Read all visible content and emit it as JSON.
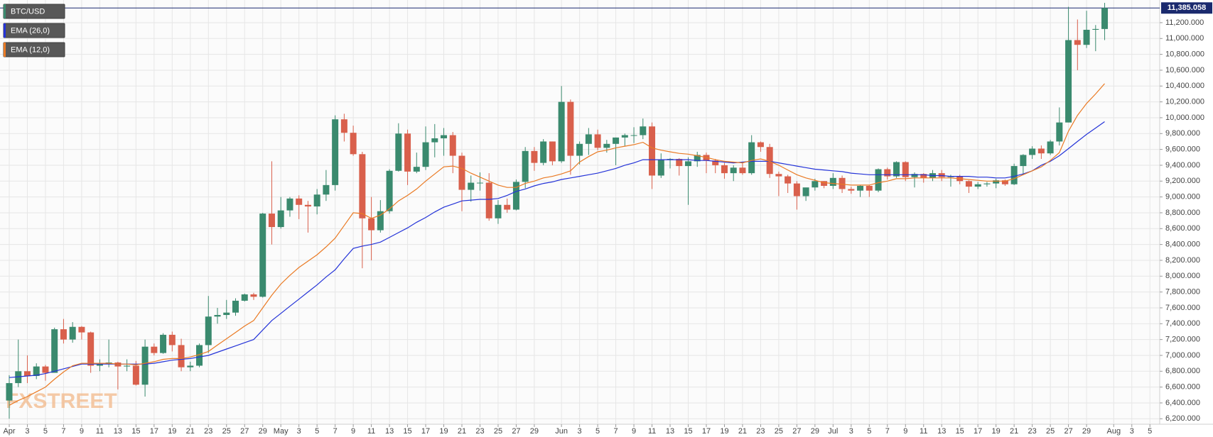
{
  "chart_data": {
    "type": "candlestick",
    "watermark": "FXSTREET",
    "categories": [
      "Apr",
      null,
      "3",
      null,
      "5",
      null,
      "7",
      null,
      "9",
      null,
      "11",
      null,
      "13",
      null,
      "15",
      null,
      "17",
      null,
      "19",
      null,
      "21",
      null,
      "23",
      null,
      "25",
      null,
      "27",
      null,
      "29",
      null,
      "May",
      null,
      "3",
      null,
      "5",
      null,
      "7",
      null,
      "9",
      null,
      "11",
      null,
      "13",
      null,
      "15",
      null,
      "17",
      null,
      "19",
      null,
      "21",
      null,
      "23",
      null,
      "25",
      null,
      "27",
      null,
      "29",
      null,
      null,
      "Jun",
      null,
      "3",
      null,
      "5",
      null,
      "7",
      null,
      "9",
      null,
      "11",
      null,
      "13",
      null,
      "15",
      null,
      "17",
      null,
      "19",
      null,
      "21",
      null,
      "23",
      null,
      "25",
      null,
      "27",
      null,
      "29",
      null,
      "Jul",
      null,
      "3",
      null,
      "5",
      null,
      "7",
      null,
      "9",
      null,
      "11",
      null,
      "13",
      null,
      "15",
      null,
      "17",
      null,
      "19",
      null,
      "21",
      null,
      "23",
      null,
      "25",
      null,
      "27",
      null,
      "29",
      null,
      null,
      "Aug",
      null,
      "3",
      null,
      "5",
      null
    ],
    "ohlc": {
      "name": "BTC/USD",
      "up_color": "#3a8a6e",
      "down_color": "#d9604c",
      "open": [
        6430,
        6650,
        6800,
        6740,
        6860,
        6780,
        7330,
        7200,
        7360,
        7290,
        6870,
        6890,
        6910,
        6860,
        6870,
        6630,
        7110,
        7030,
        7260,
        7130,
        6850,
        6870,
        7130,
        7490,
        7510,
        7540,
        7690,
        7770,
        7740,
        8790,
        8620,
        8830,
        8980,
        8900,
        8880,
        9030,
        9150,
        9980,
        9810,
        9540,
        8730,
        8580,
        8820,
        9330,
        9800,
        9320,
        9380,
        9690,
        9740,
        9780,
        9520,
        9090,
        9180,
        9180,
        8730,
        8900,
        8840,
        9190,
        9580,
        9430,
        9700,
        9450,
        10200,
        9520,
        9670,
        9790,
        9620,
        9670,
        9750,
        9780,
        9780,
        9890,
        9270,
        9470,
        9480,
        9390,
        9450,
        9530,
        9460,
        9400,
        9300,
        9370,
        9300,
        9690,
        9630,
        9290,
        9260,
        9170,
        9010,
        9120,
        9200,
        9140,
        9240,
        9100,
        9080,
        9140,
        9080,
        9350,
        9260,
        9440,
        9250,
        9290,
        9240,
        9300,
        9250,
        9260,
        9200,
        9130,
        9160,
        9170,
        9210,
        9160,
        9390,
        9530,
        9610,
        9550,
        9700,
        9940,
        10980,
        10920,
        11110,
        11120,
        null,
        null,
        null,
        null,
        null,
        null
      ],
      "high": [
        6750,
        7200,
        7000,
        6900,
        6880,
        7350,
        7460,
        7420,
        7370,
        7300,
        6950,
        7200,
        6920,
        6950,
        6930,
        7200,
        7150,
        7280,
        7300,
        7210,
        6920,
        7150,
        7750,
        7600,
        7700,
        7720,
        7780,
        7790,
        8800,
        9450,
        9000,
        9000,
        9020,
        8950,
        9100,
        9340,
        10030,
        10050,
        9900,
        9570,
        9000,
        8960,
        9350,
        9930,
        9850,
        9560,
        9890,
        9920,
        9870,
        9820,
        9560,
        9270,
        9310,
        9300,
        8960,
        8980,
        9220,
        9630,
        9630,
        9730,
        9700,
        10400,
        10230,
        9700,
        9870,
        9850,
        9720,
        9750,
        9800,
        9880,
        9990,
        9940,
        9550,
        9490,
        9490,
        9500,
        9570,
        9560,
        9480,
        9430,
        9400,
        9440,
        9780,
        9700,
        9670,
        9320,
        9280,
        9200,
        9110,
        9230,
        9200,
        9300,
        9270,
        9130,
        9150,
        9150,
        9360,
        9370,
        9450,
        9450,
        9310,
        9300,
        9340,
        9340,
        9280,
        9280,
        9210,
        9190,
        9190,
        9230,
        9220,
        9420,
        9540,
        9640,
        9650,
        9720,
        10130,
        11400,
        11240,
        11350,
        11170,
        11450,
        null,
        null,
        null,
        null,
        null,
        null
      ],
      "low": [
        6200,
        6600,
        6650,
        6700,
        6680,
        6780,
        7150,
        7160,
        7200,
        6780,
        6800,
        6850,
        6570,
        6800,
        6620,
        6480,
        7000,
        7020,
        7050,
        6800,
        6800,
        6850,
        7030,
        7400,
        7460,
        7500,
        7680,
        7700,
        7730,
        8400,
        8600,
        8750,
        8720,
        8550,
        8780,
        8950,
        9080,
        9700,
        9520,
        8100,
        8200,
        8550,
        8790,
        9320,
        9150,
        9300,
        9340,
        9500,
        9520,
        9300,
        8820,
        8940,
        9080,
        8700,
        8660,
        8800,
        8830,
        9110,
        9330,
        9400,
        9400,
        9430,
        9280,
        9410,
        9530,
        9590,
        9560,
        9400,
        9640,
        9680,
        9730,
        9100,
        9240,
        9360,
        9270,
        8900,
        9380,
        9300,
        9300,
        9230,
        9200,
        9280,
        9280,
        9570,
        9240,
        9010,
        9050,
        8840,
        8950,
        9080,
        9110,
        9100,
        9050,
        9040,
        9000,
        9000,
        9060,
        9220,
        9240,
        9200,
        9120,
        9180,
        9200,
        9200,
        9130,
        9160,
        9050,
        9100,
        9130,
        9110,
        9140,
        9150,
        9280,
        9480,
        9480,
        9530,
        9650,
        9940,
        10600,
        10880,
        10840,
        10980,
        null,
        null,
        null,
        null,
        null,
        null
      ],
      "close": [
        6650,
        6800,
        6740,
        6860,
        6780,
        7330,
        7200,
        7360,
        7290,
        6870,
        6890,
        6910,
        6860,
        6870,
        6630,
        7110,
        7030,
        7260,
        7130,
        6850,
        6870,
        7130,
        7490,
        7510,
        7540,
        7690,
        7770,
        7740,
        8790,
        8620,
        8830,
        8980,
        8900,
        8880,
        9030,
        9150,
        9980,
        9810,
        9540,
        8730,
        8580,
        8820,
        9330,
        9800,
        9320,
        9380,
        9690,
        9740,
        9780,
        9520,
        9090,
        9180,
        9180,
        8730,
        8900,
        8840,
        9190,
        9580,
        9430,
        9700,
        9450,
        10200,
        9520,
        9670,
        9790,
        9620,
        9670,
        9750,
        9780,
        9780,
        9890,
        9270,
        9470,
        9480,
        9390,
        9450,
        9530,
        9460,
        9400,
        9300,
        9370,
        9300,
        9690,
        9630,
        9290,
        9260,
        9170,
        9010,
        9120,
        9200,
        9140,
        9240,
        9100,
        9080,
        9140,
        9080,
        9350,
        9260,
        9440,
        9250,
        9290,
        9240,
        9300,
        9250,
        9260,
        9200,
        9130,
        9160,
        9170,
        9210,
        9160,
        9390,
        9530,
        9610,
        9550,
        9700,
        9940,
        10980,
        10920,
        11110,
        11120,
        11385.058,
        null,
        null,
        null,
        null,
        null,
        null
      ]
    },
    "series": [
      {
        "name": "EMA (26,0)",
        "color": "#2433d8",
        "values": [
          6720,
          6730,
          6740,
          6750,
          6770,
          6800,
          6830,
          6860,
          6890,
          6890,
          6890,
          6890,
          6890,
          6890,
          6890,
          6890,
          6900,
          6920,
          6940,
          6950,
          6960,
          6980,
          7000,
          7040,
          7080,
          7120,
          7160,
          7200,
          7320,
          7440,
          7530,
          7620,
          7710,
          7800,
          7890,
          7990,
          8080,
          8220,
          8350,
          8380,
          8400,
          8430,
          8490,
          8550,
          8610,
          8680,
          8740,
          8810,
          8870,
          8910,
          8950,
          8960,
          8970,
          8970,
          8980,
          9020,
          9070,
          9100,
          9140,
          9170,
          9190,
          9220,
          9240,
          9260,
          9280,
          9300,
          9330,
          9360,
          9400,
          9430,
          9470,
          9470,
          9470,
          9470,
          9470,
          9470,
          9460,
          9460,
          9450,
          9440,
          9430,
          9440,
          9450,
          9450,
          9450,
          9430,
          9410,
          9390,
          9370,
          9350,
          9340,
          9330,
          9320,
          9300,
          9290,
          9280,
          9280,
          9280,
          9280,
          9280,
          9280,
          9280,
          9270,
          9270,
          9260,
          9260,
          9260,
          9250,
          9250,
          9240,
          9240,
          9260,
          9290,
          9330,
          9400,
          9450,
          9520,
          9610,
          9700,
          9790,
          9870,
          9950,
          null,
          null,
          null,
          null,
          null,
          null
        ]
      },
      {
        "name": "EMA (12,0)",
        "color": "#ea7a24",
        "values": [
          6370,
          6430,
          6480,
          6540,
          6600,
          6700,
          6790,
          6870,
          6900,
          6900,
          6900,
          6900,
          6890,
          6890,
          6880,
          6900,
          6920,
          6950,
          6960,
          6960,
          6980,
          7010,
          7050,
          7130,
          7210,
          7290,
          7370,
          7440,
          7600,
          7760,
          7900,
          8010,
          8110,
          8190,
          8270,
          8370,
          8480,
          8640,
          8800,
          8790,
          8730,
          8770,
          8850,
          8950,
          9020,
          9100,
          9200,
          9290,
          9380,
          9390,
          9360,
          9300,
          9250,
          9200,
          9150,
          9120,
          9120,
          9170,
          9200,
          9240,
          9260,
          9290,
          9330,
          9440,
          9510,
          9570,
          9590,
          9620,
          9640,
          9660,
          9690,
          9620,
          9590,
          9570,
          9550,
          9540,
          9520,
          9500,
          9470,
          9450,
          9440,
          9430,
          9460,
          9480,
          9450,
          9400,
          9340,
          9280,
          9240,
          9210,
          9180,
          9170,
          9160,
          9150,
          9150,
          9150,
          9180,
          9200,
          9230,
          9230,
          9240,
          9240,
          9240,
          9240,
          9240,
          9230,
          9220,
          9210,
          9200,
          9200,
          9200,
          9230,
          9280,
          9330,
          9380,
          9460,
          9560,
          9830,
          10030,
          10180,
          10300,
          10430,
          null,
          null,
          null,
          null,
          null,
          null
        ]
      }
    ],
    "last_price": {
      "value": 11385.058,
      "label": "11,385.058",
      "color": "#1b2a6e"
    },
    "ylim": [
      6131,
      11486
    ],
    "yticks": [
      {
        "value": 6200,
        "label": "6,200.000"
      },
      {
        "value": 6400,
        "label": "6,400.000"
      },
      {
        "value": 6600,
        "label": "6,600.000"
      },
      {
        "value": 6800,
        "label": "6,800.000"
      },
      {
        "value": 7000,
        "label": "7,000.000"
      },
      {
        "value": 7200,
        "label": "7,200.000"
      },
      {
        "value": 7400,
        "label": "7,400.000"
      },
      {
        "value": 7600,
        "label": "7,600.000"
      },
      {
        "value": 7800,
        "label": "7,800.000"
      },
      {
        "value": 8000,
        "label": "8,000.000"
      },
      {
        "value": 8200,
        "label": "8,200.000"
      },
      {
        "value": 8400,
        "label": "8,400.000"
      },
      {
        "value": 8600,
        "label": "8,600.000"
      },
      {
        "value": 8800,
        "label": "8,800.000"
      },
      {
        "value": 9000,
        "label": "9,000.000"
      },
      {
        "value": 9200,
        "label": "9,200.000"
      },
      {
        "value": 9400,
        "label": "9,400.000"
      },
      {
        "value": 9600,
        "label": "9,600.000"
      },
      {
        "value": 9800,
        "label": "9,800.000"
      },
      {
        "value": 10000,
        "label": "10,000.000"
      },
      {
        "value": 10200,
        "label": "10,200.000"
      },
      {
        "value": 10400,
        "label": "10,400.000"
      },
      {
        "value": 10600,
        "label": "10,600.000"
      },
      {
        "value": 10800,
        "label": "10,800.000"
      },
      {
        "value": 11000,
        "label": "11,000.000"
      },
      {
        "value": 11200,
        "label": "11,200.000"
      }
    ],
    "grid": true
  }
}
